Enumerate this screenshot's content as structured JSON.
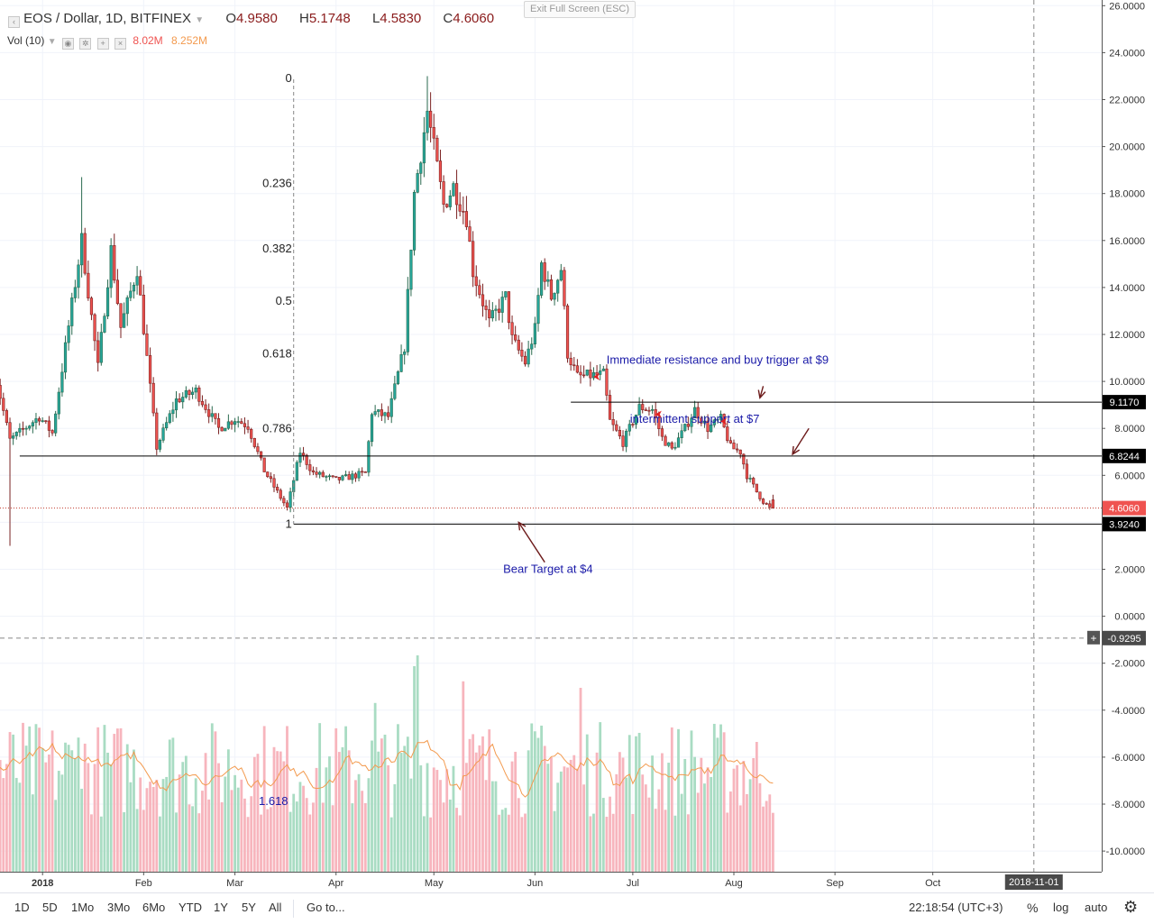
{
  "header": {
    "symbol": "EOS / Dollar, 1D, BITFINEX",
    "open_label": "O",
    "open": "4.9580",
    "high_label": "H",
    "high": "5.1748",
    "low_label": "L",
    "low": "4.5830",
    "close_label": "C",
    "close": "4.6060",
    "vol_label": "Vol (10)",
    "vol_value": "8.02M",
    "vol_ma": "8.252M",
    "exit_fullscreen": "Exit Full Screen (ESC)"
  },
  "colors": {
    "up": "#26a69a",
    "down": "#ef5350",
    "vol_up": "#a9dcc3",
    "vol_down": "#f7b5bd",
    "vol_ma": "#f39a4e",
    "annotation": "#1a1aa8",
    "arrow": "#6d1b1b",
    "grid": "#f0f3fa"
  },
  "toolbar": {
    "timeframes": [
      "1D",
      "5D",
      "1Mo",
      "3Mo",
      "6Mo",
      "YTD",
      "1Y",
      "5Y",
      "All"
    ],
    "goto": "Go to...",
    "clock": "22:18:54 (UTC+3)",
    "percent": "%",
    "log": "log",
    "auto": "auto",
    "settings_icon": "gear-icon"
  },
  "chart_data": {
    "type": "candlestick",
    "title": "EOS / Dollar, 1D, BITFINEX",
    "y_range": [
      -11,
      26
    ],
    "y_ticks": [
      "26.0000",
      "24.0000",
      "22.0000",
      "20.0000",
      "18.0000",
      "16.0000",
      "14.0000",
      "12.0000",
      "10.0000",
      "8.0000",
      "6.0000",
      "4.0000",
      "2.0000",
      "0.0000",
      "-2.0000",
      "-4.0000",
      "-6.0000",
      "-8.0000",
      "-10.0000"
    ],
    "x_range": [
      "2017-12-17",
      "2018-11-27"
    ],
    "x_ticks": [
      {
        "label": "2018",
        "date": "2018-01-01"
      },
      {
        "label": "Feb",
        "date": "2018-02-01"
      },
      {
        "label": "Mar",
        "date": "2018-03-01"
      },
      {
        "label": "Apr",
        "date": "2018-04-01"
      },
      {
        "label": "May",
        "date": "2018-05-01"
      },
      {
        "label": "Jun",
        "date": "2018-06-01"
      },
      {
        "label": "Jul",
        "date": "2018-07-01"
      },
      {
        "label": "Aug",
        "date": "2018-08-01"
      },
      {
        "label": "Sep",
        "date": "2018-09-01"
      },
      {
        "label": "Oct",
        "date": "2018-10-01"
      }
    ],
    "x_marker": {
      "label": "2018-11-01",
      "date": "2018-11-01"
    },
    "key_closes": [
      {
        "date": "2017-12-17",
        "close": 10.6
      },
      {
        "date": "2017-12-22",
        "close": 7.5
      },
      {
        "date": "2017-12-31",
        "close": 8.5
      },
      {
        "date": "2018-01-04",
        "close": 7.8
      },
      {
        "date": "2018-01-13",
        "close": 16.0
      },
      {
        "date": "2018-01-18",
        "close": 10.6
      },
      {
        "date": "2018-01-22",
        "close": 15.6
      },
      {
        "date": "2018-01-25",
        "close": 12.3
      },
      {
        "date": "2018-01-30",
        "close": 14.8
      },
      {
        "date": "2018-02-05",
        "close": 7.2
      },
      {
        "date": "2018-02-11",
        "close": 9.2
      },
      {
        "date": "2018-02-17",
        "close": 9.6
      },
      {
        "date": "2018-02-24",
        "close": 8.0
      },
      {
        "date": "2018-03-01",
        "close": 8.4
      },
      {
        "date": "2018-03-05",
        "close": 8.1
      },
      {
        "date": "2018-03-10",
        "close": 6.2
      },
      {
        "date": "2018-03-17",
        "close": 4.6
      },
      {
        "date": "2018-03-21",
        "close": 7.0
      },
      {
        "date": "2018-03-25",
        "close": 6.1
      },
      {
        "date": "2018-04-01",
        "close": 5.8
      },
      {
        "date": "2018-04-10",
        "close": 6.1
      },
      {
        "date": "2018-04-12",
        "close": 8.7
      },
      {
        "date": "2018-04-17",
        "close": 8.5
      },
      {
        "date": "2018-04-22",
        "close": 11.5
      },
      {
        "date": "2018-04-25",
        "close": 18.0
      },
      {
        "date": "2018-04-29",
        "close": 21.5
      },
      {
        "date": "2018-05-04",
        "close": 17.5
      },
      {
        "date": "2018-05-07",
        "close": 18.3
      },
      {
        "date": "2018-05-11",
        "close": 17.0
      },
      {
        "date": "2018-05-13",
        "close": 14.7
      },
      {
        "date": "2018-05-18",
        "close": 12.5
      },
      {
        "date": "2018-05-23",
        "close": 13.6
      },
      {
        "date": "2018-05-25",
        "close": 11.8
      },
      {
        "date": "2018-05-29",
        "close": 10.8
      },
      {
        "date": "2018-06-01",
        "close": 12.2
      },
      {
        "date": "2018-06-03",
        "close": 15.0
      },
      {
        "date": "2018-06-06",
        "close": 13.6
      },
      {
        "date": "2018-06-09",
        "close": 14.8
      },
      {
        "date": "2018-06-11",
        "close": 11.2
      },
      {
        "date": "2018-06-14",
        "close": 10.2
      },
      {
        "date": "2018-06-22",
        "close": 10.3
      },
      {
        "date": "2018-06-24",
        "close": 8.3
      },
      {
        "date": "2018-06-28",
        "close": 7.4
      },
      {
        "date": "2018-07-03",
        "close": 8.9
      },
      {
        "date": "2018-07-07",
        "close": 8.8
      },
      {
        "date": "2018-07-10",
        "close": 7.6
      },
      {
        "date": "2018-07-13",
        "close": 7.1
      },
      {
        "date": "2018-07-17",
        "close": 8.0
      },
      {
        "date": "2018-07-20",
        "close": 8.8
      },
      {
        "date": "2018-07-24",
        "close": 8.0
      },
      {
        "date": "2018-07-28",
        "close": 8.4
      },
      {
        "date": "2018-07-31",
        "close": 7.2
      },
      {
        "date": "2018-08-03",
        "close": 7.0
      },
      {
        "date": "2018-08-05",
        "close": 6.0
      },
      {
        "date": "2018-08-08",
        "close": 5.3
      },
      {
        "date": "2018-08-10",
        "close": 4.9
      },
      {
        "date": "2018-08-12",
        "close": 4.606
      }
    ],
    "last_candle": {
      "date": "2018-08-13",
      "open": 4.958,
      "high": 5.1748,
      "low": 4.583,
      "close": 4.606
    },
    "horizontal_lines": [
      {
        "price": 9.117,
        "label": "9.1170",
        "from": "2018-06-12"
      },
      {
        "price": 6.8244,
        "label": "6.8244",
        "from": "2017-12-25"
      },
      {
        "price": 3.924,
        "label": "3.9240",
        "from": "2018-03-19"
      }
    ],
    "current_price_label": "4.6060",
    "crosshair_price_label": "-0.9295",
    "crosshair_price": -0.9295,
    "fibonacci": {
      "top_price": 22.9,
      "bottom_price": 3.924,
      "date": "2018-03-19",
      "levels": [
        "0",
        "0.236",
        "0.382",
        "0.5",
        "0.618",
        "0.786",
        "1"
      ],
      "ratios": [
        0,
        0.236,
        0.382,
        0.5,
        0.618,
        0.786,
        1
      ]
    },
    "volume_annotation": "1.618",
    "annotations": [
      {
        "text": "Immediate resistance and buy trigger at $9",
        "date": "2018-07-27",
        "price": 10.9
      },
      {
        "text": "intermittent support at $7",
        "date": "2018-07-20",
        "price": 8.4
      },
      {
        "text": "Bear Target at $4",
        "date": "2018-06-05",
        "price": 2.0
      }
    ],
    "arrows": [
      {
        "from": [
          "2018-08-10",
          9.8
        ],
        "to": [
          "2018-08-09",
          9.3
        ]
      },
      {
        "from": [
          "2018-08-24",
          8.0
        ],
        "to": [
          "2018-08-19",
          6.9
        ]
      },
      {
        "from": [
          "2018-06-04",
          2.3
        ],
        "to": [
          "2018-05-27",
          4.0
        ]
      }
    ],
    "reversal_markers": [
      {
        "date": "2018-06-20",
        "price": 10.2
      },
      {
        "date": "2018-07-09",
        "price": 8.6
      },
      {
        "date": "2018-07-29",
        "price": 8.3
      }
    ],
    "volume_series": "10-period volume with moving average, green = up day, pink = down day"
  }
}
